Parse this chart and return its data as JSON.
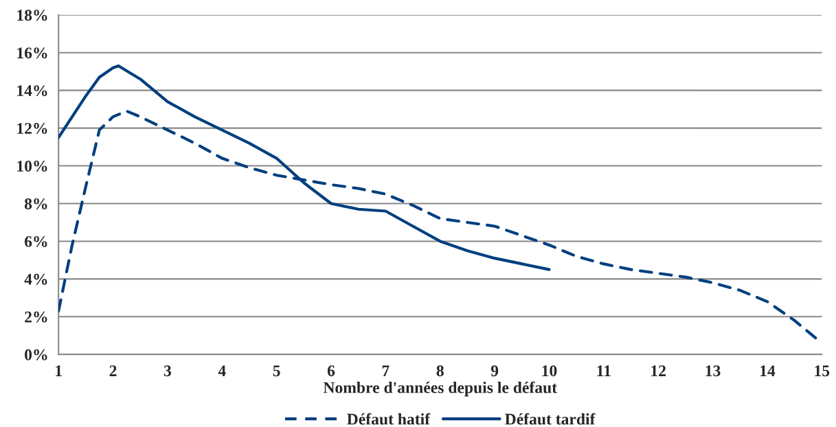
{
  "chart_data": {
    "type": "line",
    "xlabel": "Nombre d'années depuis le défaut",
    "series": [
      {
        "name": "Défaut hatif",
        "color": "#003f7f",
        "line_style": "dashed",
        "x": [
          1,
          1.25,
          1.5,
          1.75,
          2,
          2.25,
          2.5,
          3,
          3.5,
          4,
          4.5,
          5,
          5.5,
          6,
          6.5,
          7,
          7.5,
          8,
          8.5,
          9,
          9.5,
          10,
          10.5,
          11,
          11.5,
          12,
          12.5,
          13,
          13.5,
          14,
          14.5,
          15
        ],
        "values": [
          2.3,
          5.8,
          8.9,
          11.9,
          12.6,
          12.9,
          12.6,
          11.9,
          11.2,
          10.4,
          9.9,
          9.5,
          9.25,
          9.0,
          8.8,
          8.5,
          7.9,
          7.2,
          7.0,
          6.8,
          6.3,
          5.8,
          5.2,
          4.8,
          4.5,
          4.3,
          4.1,
          3.8,
          3.4,
          2.8,
          1.8,
          0.6
        ]
      },
      {
        "name": "Défaut tardif",
        "color": "#003f7f",
        "line_style": "solid",
        "x": [
          1,
          1.5,
          1.75,
          2,
          2.1,
          2.5,
          3,
          3.5,
          4,
          4.5,
          5,
          5.5,
          6,
          6.5,
          7,
          7.5,
          8,
          8.5,
          9,
          9.5,
          10
        ],
        "values": [
          11.5,
          13.7,
          14.7,
          15.2,
          15.3,
          14.6,
          13.4,
          12.6,
          11.9,
          11.2,
          10.4,
          9.1,
          8.0,
          7.7,
          7.6,
          6.8,
          6.0,
          5.5,
          5.1,
          4.8,
          4.5
        ]
      }
    ],
    "xlim": [
      1,
      15
    ],
    "xticks": [
      1,
      2,
      3,
      4,
      5,
      6,
      7,
      8,
      9,
      10,
      11,
      12,
      13,
      14,
      15
    ],
    "ylim": [
      0,
      18
    ],
    "yticks": [
      {
        "value": 0,
        "label": "0%"
      },
      {
        "value": 2,
        "label": "2%"
      },
      {
        "value": 4,
        "label": "4%"
      },
      {
        "value": 6,
        "label": "6%"
      },
      {
        "value": 8,
        "label": "8%"
      },
      {
        "value": 10,
        "label": "10%"
      },
      {
        "value": 12,
        "label": "12%"
      },
      {
        "value": 14,
        "label": "14%"
      },
      {
        "value": 16,
        "label": "16%"
      },
      {
        "value": 18,
        "label": "18%"
      }
    ],
    "grid": "y",
    "legend": "bottom",
    "marker": "none"
  }
}
